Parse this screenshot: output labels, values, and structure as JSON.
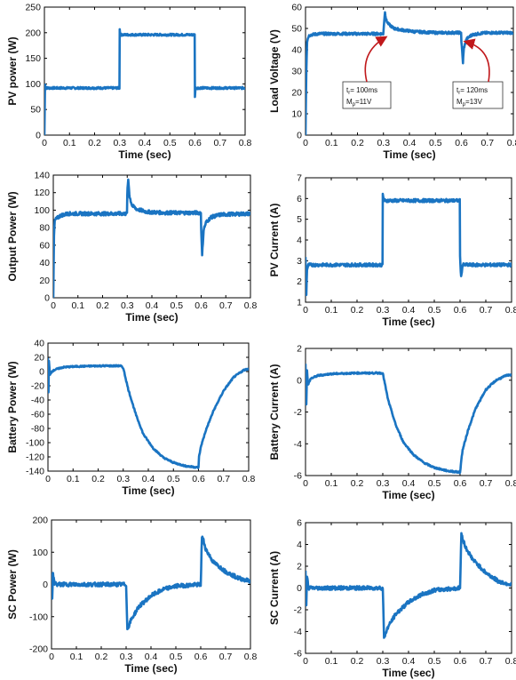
{
  "colors": {
    "series": "#1a74c2",
    "axes": "#000000",
    "arrow": "#c0181b",
    "background": "#ffffff"
  },
  "chart_data": [
    {
      "id": "pv-power",
      "type": "line",
      "title": "",
      "xlabel": "Time (sec)",
      "ylabel": "PV power (W)",
      "xlim": [
        0,
        0.8
      ],
      "ylim": [
        0,
        250
      ],
      "xticks": [
        "0",
        "0.1",
        "0.2",
        "0.3",
        "0.4",
        "0.5",
        "0.6",
        "0.7",
        "0.8"
      ],
      "yticks": [
        "0",
        "50",
        "100",
        "150",
        "200",
        "250"
      ],
      "grid": false,
      "series": [
        {
          "x": [
            0,
            0.002,
            0.003,
            0.005,
            0.01,
            0.299,
            0.3,
            0.302,
            0.599,
            0.6,
            0.602,
            0.605,
            0.8
          ],
          "y": [
            0,
            85,
            100,
            93,
            92,
            92,
            208,
            196,
            196,
            76,
            92,
            92,
            92
          ],
          "band": 4
        }
      ]
    },
    {
      "id": "load-voltage",
      "type": "line",
      "title": "",
      "xlabel": "Time (sec)",
      "ylabel": "Load Voltage (V)",
      "xlim": [
        0,
        0.8
      ],
      "ylim": [
        0,
        60
      ],
      "xticks": [
        "0",
        "0.1",
        "0.2",
        "0.3",
        "0.4",
        "0.5",
        "0.6",
        "0.7",
        "0.8"
      ],
      "yticks": [
        "0",
        "10",
        "20",
        "30",
        "40",
        "50",
        "60"
      ],
      "grid": false,
      "series": [
        {
          "x": [
            0,
            0.003,
            0.006,
            0.012,
            0.02,
            0.05,
            0.299,
            0.3,
            0.306,
            0.31,
            0.32,
            0.34,
            0.37,
            0.42,
            0.5,
            0.599,
            0.6,
            0.606,
            0.61,
            0.62,
            0.64,
            0.68,
            0.72,
            0.8
          ],
          "y": [
            0,
            30,
            44,
            46.5,
            47,
            47.5,
            47.5,
            49,
            58,
            54,
            52,
            50,
            49.3,
            48.5,
            48,
            48,
            44,
            34,
            41,
            45,
            47,
            47.8,
            48,
            48
          ],
          "band": 1.2
        }
      ],
      "annotations": [
        {
          "line1": "t",
          "sub1": "r",
          "rest1": "= 100ms",
          "line2": "M",
          "sub2": "p",
          "rest2": "=11V",
          "target": [
            0.3,
            47
          ]
        },
        {
          "line1": "t",
          "sub1": "r",
          "rest1": "= 120ms",
          "line2": "M",
          "sub2": "p",
          "rest2": "=13V",
          "target": [
            0.607,
            45
          ]
        }
      ]
    },
    {
      "id": "output-power",
      "type": "line",
      "title": "",
      "xlabel": "Time (sec)",
      "ylabel": "Output Power (W)",
      "xlim": [
        0,
        0.8
      ],
      "ylim": [
        0,
        140
      ],
      "xticks": [
        "0",
        "0.1",
        "0.2",
        "0.3",
        "0.4",
        "0.5",
        "0.6",
        "0.7",
        "0.8"
      ],
      "yticks": [
        "0",
        "20",
        "40",
        "60",
        "80",
        "100",
        "120",
        "140"
      ],
      "grid": false,
      "series": [
        {
          "x": [
            0,
            0.003,
            0.006,
            0.012,
            0.03,
            0.06,
            0.299,
            0.3,
            0.304,
            0.31,
            0.32,
            0.34,
            0.38,
            0.45,
            0.599,
            0.6,
            0.604,
            0.61,
            0.62,
            0.64,
            0.68,
            0.8
          ],
          "y": [
            0,
            70,
            88,
            90,
            94,
            96,
            96,
            118,
            135,
            115,
            105,
            101,
            98,
            97,
            97,
            80,
            48,
            78,
            86,
            92,
            95,
            96
          ],
          "band": 4
        }
      ]
    },
    {
      "id": "pv-current",
      "type": "line",
      "title": "",
      "xlabel": "Time (sec)",
      "ylabel": "PV Current (A)",
      "xlim": [
        0,
        0.8
      ],
      "ylim": [
        1,
        7
      ],
      "xticks": [
        "0",
        "0.1",
        "0.2",
        "0.3",
        "0.4",
        "0.5",
        "0.6",
        "0.7",
        "0.8"
      ],
      "yticks": [
        "1",
        "2",
        "3",
        "4",
        "5",
        "6",
        "7"
      ],
      "grid": false,
      "series": [
        {
          "x": [
            0,
            0.003,
            0.006,
            0.012,
            0.299,
            0.3,
            0.305,
            0.599,
            0.6,
            0.604,
            0.61,
            0.8
          ],
          "y": [
            3.2,
            1.4,
            2.6,
            2.8,
            2.8,
            6.2,
            5.9,
            5.9,
            3.2,
            2.2,
            2.8,
            2.8
          ],
          "band": 0.15
        }
      ]
    },
    {
      "id": "battery-power",
      "type": "line",
      "title": "",
      "xlabel": "Time (sec)",
      "ylabel": "Battery Power (W)",
      "xlim": [
        0,
        0.8
      ],
      "ylim": [
        -140,
        40
      ],
      "xticks": [
        "0",
        "0.1",
        "0.2",
        "0.3",
        "0.4",
        "0.5",
        "0.6",
        "0.7",
        "0.8"
      ],
      "yticks": [
        "-140",
        "-120",
        "-100",
        "-80",
        "-60",
        "-40",
        "-20",
        "0",
        "20",
        "40"
      ],
      "grid": false,
      "series": [
        {
          "x": [
            0,
            0.002,
            0.004,
            0.008,
            0.015,
            0.03,
            0.06,
            0.1,
            0.2,
            0.29,
            0.3,
            0.32,
            0.35,
            0.38,
            0.42,
            0.46,
            0.5,
            0.55,
            0.6,
            0.602,
            0.61,
            0.63,
            0.66,
            0.7,
            0.74,
            0.78,
            0.8
          ],
          "y": [
            20,
            -30,
            15,
            -5,
            0,
            3,
            6,
            7,
            8,
            8,
            5,
            -25,
            -60,
            -88,
            -108,
            -121,
            -128,
            -133,
            -135,
            -120,
            -105,
            -82,
            -55,
            -27,
            -8,
            2,
            4
          ],
          "band": 2
        }
      ]
    },
    {
      "id": "battery-current",
      "type": "line",
      "title": "",
      "xlabel": "Time (sec)",
      "ylabel": "Battery Current (A)",
      "xlim": [
        0,
        0.8
      ],
      "ylim": [
        -6,
        2
      ],
      "xticks": [
        "0",
        "0.1",
        "0.2",
        "0.3",
        "0.4",
        "0.5",
        "0.6",
        "0.7",
        "0.8"
      ],
      "yticks": [
        "-6",
        "-4",
        "-2",
        "0",
        "2"
      ],
      "grid": false,
      "series": [
        {
          "x": [
            0,
            0.003,
            0.006,
            0.01,
            0.02,
            0.05,
            0.1,
            0.2,
            0.3,
            0.32,
            0.35,
            0.38,
            0.42,
            0.46,
            0.5,
            0.55,
            0.6,
            0.605,
            0.61,
            0.63,
            0.66,
            0.7,
            0.74,
            0.78,
            0.8
          ],
          "y": [
            1,
            -1.5,
            0.6,
            -0.3,
            0.1,
            0.3,
            0.4,
            0.45,
            0.45,
            -1.2,
            -2.8,
            -3.9,
            -4.7,
            -5.2,
            -5.5,
            -5.7,
            -5.8,
            -5,
            -4.4,
            -3.2,
            -1.8,
            -0.6,
            0,
            0.3,
            0.35
          ],
          "band": 0.1
        }
      ]
    },
    {
      "id": "sc-power",
      "type": "line",
      "title": "",
      "xlabel": "Time (sec)",
      "ylabel": "SC Power (W)",
      "xlim": [
        0,
        0.8
      ],
      "ylim": [
        -200,
        200
      ],
      "xticks": [
        "0",
        "0.1",
        "0.2",
        "0.3",
        "0.4",
        "0.5",
        "0.6",
        "0.7",
        "0.8"
      ],
      "yticks": [
        "-200",
        "-100",
        "0",
        "100",
        "200"
      ],
      "grid": false,
      "series": [
        {
          "x": [
            0,
            0.003,
            0.006,
            0.012,
            0.02,
            0.3,
            0.305,
            0.31,
            0.32,
            0.35,
            0.4,
            0.45,
            0.5,
            0.6,
            0.605,
            0.61,
            0.62,
            0.65,
            0.7,
            0.75,
            0.8
          ],
          "y": [
            40,
            -40,
            30,
            5,
            0,
            0,
            -140,
            -130,
            -110,
            -70,
            -35,
            -15,
            -5,
            0,
            150,
            140,
            110,
            70,
            40,
            20,
            10
          ],
          "band": 12
        }
      ]
    },
    {
      "id": "sc-current",
      "type": "line",
      "title": "",
      "xlabel": "Time (sec)",
      "ylabel": "SC Current (A)",
      "xlim": [
        0,
        0.8
      ],
      "ylim": [
        -6,
        6
      ],
      "xticks": [
        "0",
        "0.1",
        "0.2",
        "0.3",
        "0.4",
        "0.5",
        "0.6",
        "0.7",
        "0.8"
      ],
      "yticks": [
        "-6",
        "-4",
        "-2",
        "0",
        "2",
        "4",
        "6"
      ],
      "grid": false,
      "series": [
        {
          "x": [
            0,
            0.003,
            0.006,
            0.012,
            0.02,
            0.3,
            0.305,
            0.31,
            0.32,
            0.35,
            0.4,
            0.45,
            0.5,
            0.6,
            0.605,
            0.61,
            0.62,
            0.65,
            0.7,
            0.75,
            0.8
          ],
          "y": [
            1.5,
            -1.5,
            1,
            0,
            0,
            0,
            -4.7,
            -4.2,
            -3.6,
            -2.4,
            -1.3,
            -0.6,
            -0.2,
            0,
            5,
            4.6,
            3.8,
            2.6,
            1.4,
            0.6,
            0.3
          ],
          "band": 0.35
        }
      ]
    }
  ]
}
